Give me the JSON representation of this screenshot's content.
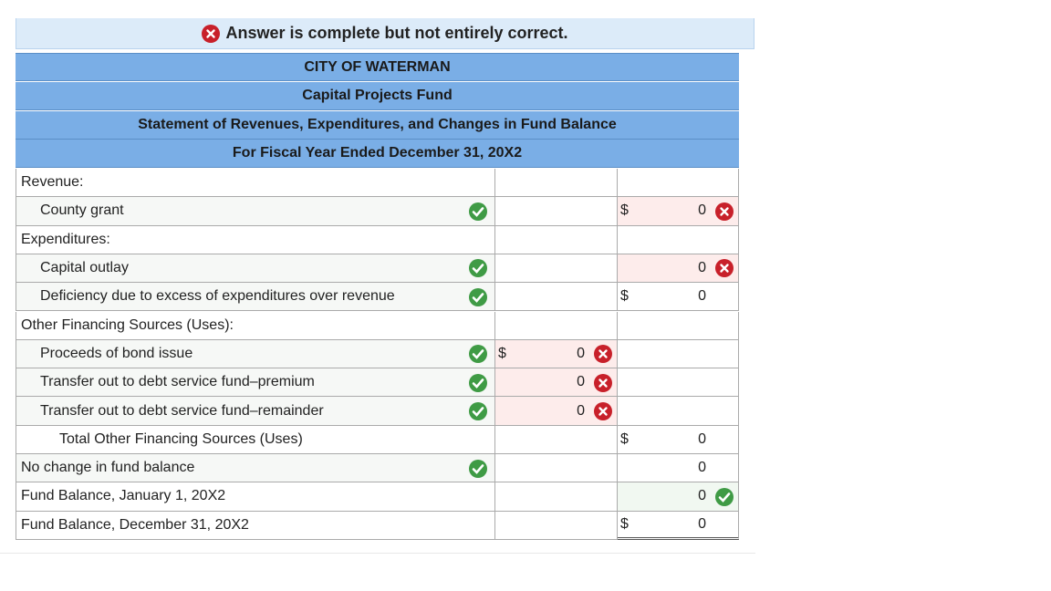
{
  "banner": {
    "text": "Answer is complete but not entirely correct.",
    "icon": "cross"
  },
  "header": [
    "CITY OF WATERMAN",
    "Capital Projects Fund",
    "Statement of Revenues, Expenditures, and Changes in Fund Balance",
    "For Fiscal Year Ended December 31, 20X2"
  ],
  "rows": [
    {
      "label": "Revenue:",
      "level": 0
    },
    {
      "label": "County grant",
      "level": 1,
      "icon": "check",
      "col2": {
        "currency": "$",
        "value": 0,
        "icon": "cross"
      }
    },
    {
      "label": "Expenditures:",
      "level": 0
    },
    {
      "label": "Capital outlay",
      "level": 1,
      "icon": "check",
      "col2": {
        "value": 0,
        "icon": "cross"
      }
    },
    {
      "label": "Deficiency due to excess of expenditures over revenue",
      "level": 1,
      "icon": "check",
      "col2": {
        "currency": "$",
        "value": 0
      }
    },
    {
      "label": "Other Financing Sources (Uses):",
      "level": 0
    },
    {
      "label": "Proceeds of bond issue",
      "level": 1,
      "icon": "check",
      "col1": {
        "currency": "$",
        "value": 0,
        "icon": "cross"
      }
    },
    {
      "label": "Transfer out to debt service fund–premium",
      "level": 1,
      "icon": "check",
      "col1": {
        "value": 0,
        "icon": "cross"
      }
    },
    {
      "label": "Transfer out to debt service fund–remainder",
      "level": 1,
      "icon": "check",
      "col1": {
        "value": 0,
        "icon": "cross"
      }
    },
    {
      "label": "Total Other Financing Sources (Uses)",
      "level": 2,
      "col2": {
        "currency": "$",
        "value": 0
      }
    },
    {
      "label": "No change in fund balance",
      "level": 0,
      "icon": "check",
      "col2": {
        "value": 0
      }
    },
    {
      "label": "Fund Balance, January 1, 20X2",
      "level": 0,
      "col2": {
        "value": 0,
        "icon": "check"
      }
    },
    {
      "label": "Fund Balance, December 31, 20X2",
      "level": 0,
      "col2": {
        "currency": "$",
        "value": 0,
        "double_underline": true
      }
    }
  ]
}
